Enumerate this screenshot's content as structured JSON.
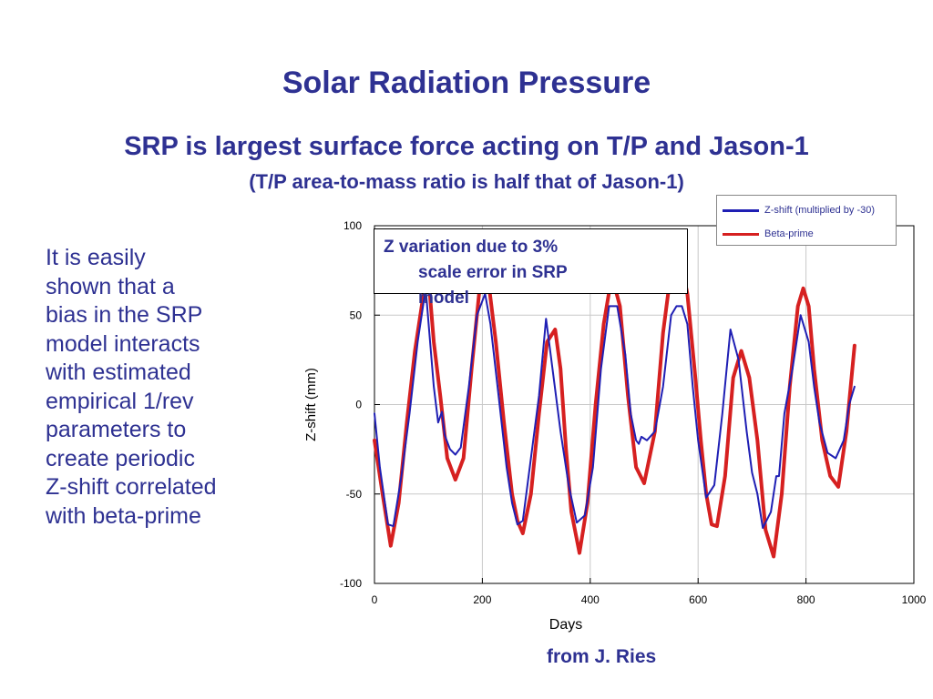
{
  "slide": {
    "title": "Solar Radiation Pressure",
    "subtitle": "SRP is largest surface force acting on T/P and Jason-1",
    "subtitle2": "(T/P area-to-mass ratio is half that of Jason-1)",
    "body_lines": [
      "It is easily",
      "shown that a",
      "bias in the SRP",
      "model interacts",
      "with estimated",
      "empirical 1/rev",
      "parameters to",
      "create periodic",
      "Z-shift correlated",
      "with beta-prime"
    ],
    "credit": "from J. Ries",
    "annotation_line1": "Z variation due to 3%",
    "annotation_line2": "scale error in SRP",
    "annotation_line3": "model"
  },
  "colors": {
    "text": "#2e3192",
    "zshift": "#1f1fb4",
    "beta": "#d62020",
    "grid": "#c8c8c8"
  },
  "chart_data": {
    "type": "line",
    "xlabel": "Days",
    "ylabel": "Z-shift (mm)",
    "xlim": [
      0,
      1000
    ],
    "ylim": [
      -100,
      100
    ],
    "xticks": [
      "0",
      "200",
      "400",
      "600",
      "800",
      "1000"
    ],
    "yticks": [
      "100",
      "50",
      "0",
      "-50",
      "-100"
    ],
    "grid": true,
    "legend_position": "top-right",
    "series": [
      {
        "name": "Z-shift (multiplied by -30)",
        "color": "#1f1fb4",
        "x": [
          0,
          10,
          25,
          35,
          50,
          65,
          80,
          95,
          110,
          118,
          125,
          130,
          140,
          150,
          160,
          175,
          190,
          205,
          215,
          230,
          245,
          255,
          265,
          275,
          290,
          305,
          318,
          330,
          345,
          360,
          375,
          390,
          405,
          420,
          435,
          450,
          465,
          475,
          485,
          490,
          495,
          505,
          520,
          535,
          550,
          560,
          570,
          580,
          590,
          600,
          615,
          630,
          645,
          660,
          675,
          690,
          700,
          710,
          720,
          735,
          745,
          750,
          760,
          775,
          790,
          805,
          815,
          825,
          840,
          855,
          870,
          880,
          890
        ],
        "y": [
          -5,
          -35,
          -67,
          -68,
          -40,
          -5,
          35,
          65,
          10,
          -10,
          -4,
          -17,
          -25,
          -28,
          -24,
          10,
          50,
          62,
          45,
          5,
          -35,
          -55,
          -67,
          -65,
          -30,
          5,
          48,
          20,
          -15,
          -45,
          -66,
          -62,
          -35,
          20,
          55,
          55,
          28,
          -5,
          -20,
          -22,
          -18,
          -20,
          -15,
          10,
          50,
          55,
          55,
          45,
          10,
          -20,
          -52,
          -45,
          -5,
          42,
          25,
          -15,
          -38,
          -50,
          -69,
          -60,
          -40,
          -40,
          -5,
          20,
          50,
          35,
          10,
          -10,
          -27,
          -30,
          -20,
          0,
          10
        ]
      },
      {
        "name": "Beta-prime",
        "color": "#d62020",
        "x": [
          0,
          15,
          30,
          45,
          60,
          75,
          90,
          100,
          110,
          122,
          135,
          150,
          165,
          180,
          195,
          210,
          225,
          240,
          255,
          265,
          275,
          290,
          305,
          320,
          335,
          345,
          355,
          365,
          380,
          395,
          410,
          425,
          440,
          455,
          470,
          485,
          500,
          520,
          535,
          550,
          565,
          580,
          595,
          605,
          615,
          625,
          635,
          650,
          665,
          680,
          695,
          710,
          725,
          740,
          755,
          770,
          785,
          795,
          805,
          815,
          830,
          845,
          860,
          875,
          890
        ],
        "y": [
          -20,
          -50,
          -79,
          -55,
          -10,
          30,
          60,
          72,
          35,
          5,
          -30,
          -42,
          -30,
          20,
          65,
          72,
          35,
          -10,
          -50,
          -65,
          -72,
          -50,
          -5,
          35,
          42,
          20,
          -25,
          -60,
          -83,
          -55,
          0,
          45,
          72,
          55,
          5,
          -35,
          -44,
          -15,
          40,
          75,
          85,
          62,
          15,
          -20,
          -50,
          -67,
          -68,
          -40,
          15,
          30,
          15,
          -20,
          -70,
          -85,
          -50,
          10,
          55,
          65,
          55,
          20,
          -20,
          -40,
          -46,
          -15,
          33
        ]
      }
    ]
  }
}
